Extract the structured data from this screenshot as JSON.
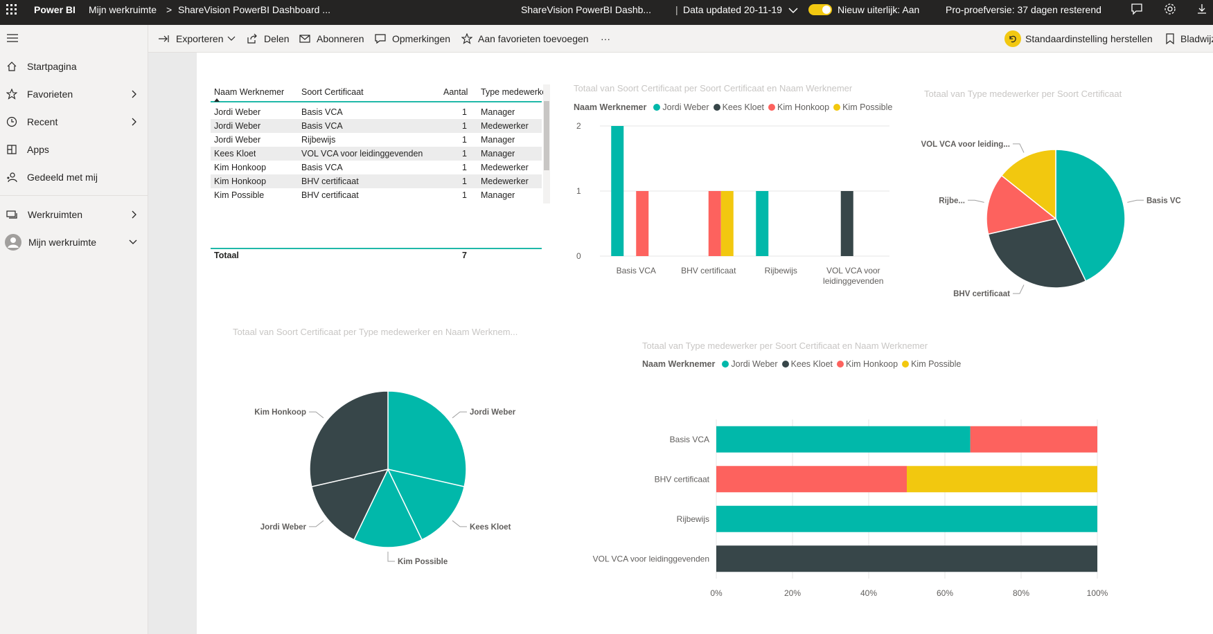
{
  "topbar": {
    "product": "Power BI",
    "breadcrumb_workspace": "Mijn werkruimte",
    "breadcrumb_report": "ShareVision PowerBI Dashboard ...",
    "report_title": "ShareVision PowerBI Dashb...",
    "data_updated": "Data updated 20-11-19",
    "new_look": "Nieuw uiterlijk: Aan",
    "trial": "Pro-proefversie: 37 dagen resterend"
  },
  "actionbar": {
    "export": "Exporteren",
    "share": "Delen",
    "subscribe": "Abonneren",
    "comments": "Opmerkingen",
    "favorite": "Aan favorieten toevoegen",
    "more": "···",
    "reset": "Standaardinstelling herstellen",
    "bookmarks": "Bladwijz"
  },
  "nav": {
    "home": "Startpagina",
    "favorites": "Favorieten",
    "recent": "Recent",
    "apps": "Apps",
    "shared": "Gedeeld met mij",
    "workspaces": "Werkruimten",
    "my_workspace": "Mijn werkruimte"
  },
  "table": {
    "headers": [
      "Naam Werknemer",
      "Soort Certificaat",
      "Aantal",
      "Type medewerker"
    ],
    "rows": [
      [
        "Jordi Weber",
        "Basis VCA",
        "1",
        "Manager"
      ],
      [
        "Jordi Weber",
        "Basis VCA",
        "1",
        "Medewerker"
      ],
      [
        "Jordi Weber",
        "Rijbewijs",
        "1",
        "Manager"
      ],
      [
        "Kees Kloet",
        "VOL VCA voor leidinggevenden",
        "1",
        "Manager"
      ],
      [
        "Kim Honkoop",
        "Basis VCA",
        "1",
        "Medewerker"
      ],
      [
        "Kim Honkoop",
        "BHV certificaat",
        "1",
        "Medewerker"
      ],
      [
        "Kim Possible",
        "BHV certificaat",
        "1",
        "Manager"
      ]
    ],
    "total_label": "Totaal",
    "total_value": "7"
  },
  "colors": {
    "jordi": "#01b8aa",
    "kees": "#374649",
    "kim_h": "#fd625e",
    "kim_p": "#f2c80f"
  },
  "chart_data": [
    {
      "type": "bar",
      "title": "Totaal van Soort Certificaat per Soort Certificaat en Naam Werknemer",
      "legend_title": "Naam Werknemer",
      "categories": [
        "Basis VCA",
        "BHV certificaat",
        "Rijbewijs",
        "VOL VCA voor leidinggevenden"
      ],
      "series": [
        {
          "name": "Jordi Weber",
          "values": [
            2,
            0,
            1,
            0
          ]
        },
        {
          "name": "Kees Kloet",
          "values": [
            0,
            0,
            0,
            1
          ]
        },
        {
          "name": "Kim Honkoop",
          "values": [
            1,
            1,
            0,
            0
          ]
        },
        {
          "name": "Kim Possible",
          "values": [
            0,
            1,
            0,
            0
          ]
        }
      ],
      "yticks": [
        "0",
        "1",
        "2"
      ],
      "ylim": [
        0,
        2
      ]
    },
    {
      "type": "pie",
      "title": "Totaal van Type medewerker per Soort Certificaat",
      "slices": [
        {
          "label": "Basis VCA",
          "value": 3
        },
        {
          "label": "BHV certificaat",
          "value": 2
        },
        {
          "label": "Rijbe...",
          "value": 1
        },
        {
          "label": "VOL VCA voor leiding...",
          "value": 1
        }
      ]
    },
    {
      "type": "pie",
      "title": "Totaal van Soort Certificaat per Type medewerker en Naam Werknem...",
      "slices": [
        {
          "label": "Jordi Weber",
          "value": 2
        },
        {
          "label": "Kees Kloet",
          "value": 1
        },
        {
          "label": "Kim Possible",
          "value": 1
        },
        {
          "label": "Jordi Weber",
          "value": 1
        },
        {
          "label": "Kim Honkoop",
          "value": 2
        }
      ]
    },
    {
      "type": "bar",
      "orientation": "horizontal-stacked-100",
      "title": "Totaal van Type medewerker per Soort Certificaat en Naam Werknemer",
      "legend_title": "Naam Werknemer",
      "categories": [
        "Basis VCA",
        "BHV certificaat",
        "Rijbewijs",
        "VOL VCA voor leidinggevenden"
      ],
      "series": [
        {
          "name": "Jordi Weber",
          "values": [
            2,
            0,
            1,
            0
          ]
        },
        {
          "name": "Kees Kloet",
          "values": [
            0,
            0,
            0,
            1
          ]
        },
        {
          "name": "Kim Honkoop",
          "values": [
            1,
            1,
            0,
            0
          ]
        },
        {
          "name": "Kim Possible",
          "values": [
            0,
            1,
            0,
            0
          ]
        }
      ],
      "xticks": [
        "0%",
        "20%",
        "40%",
        "60%",
        "80%",
        "100%"
      ]
    }
  ]
}
